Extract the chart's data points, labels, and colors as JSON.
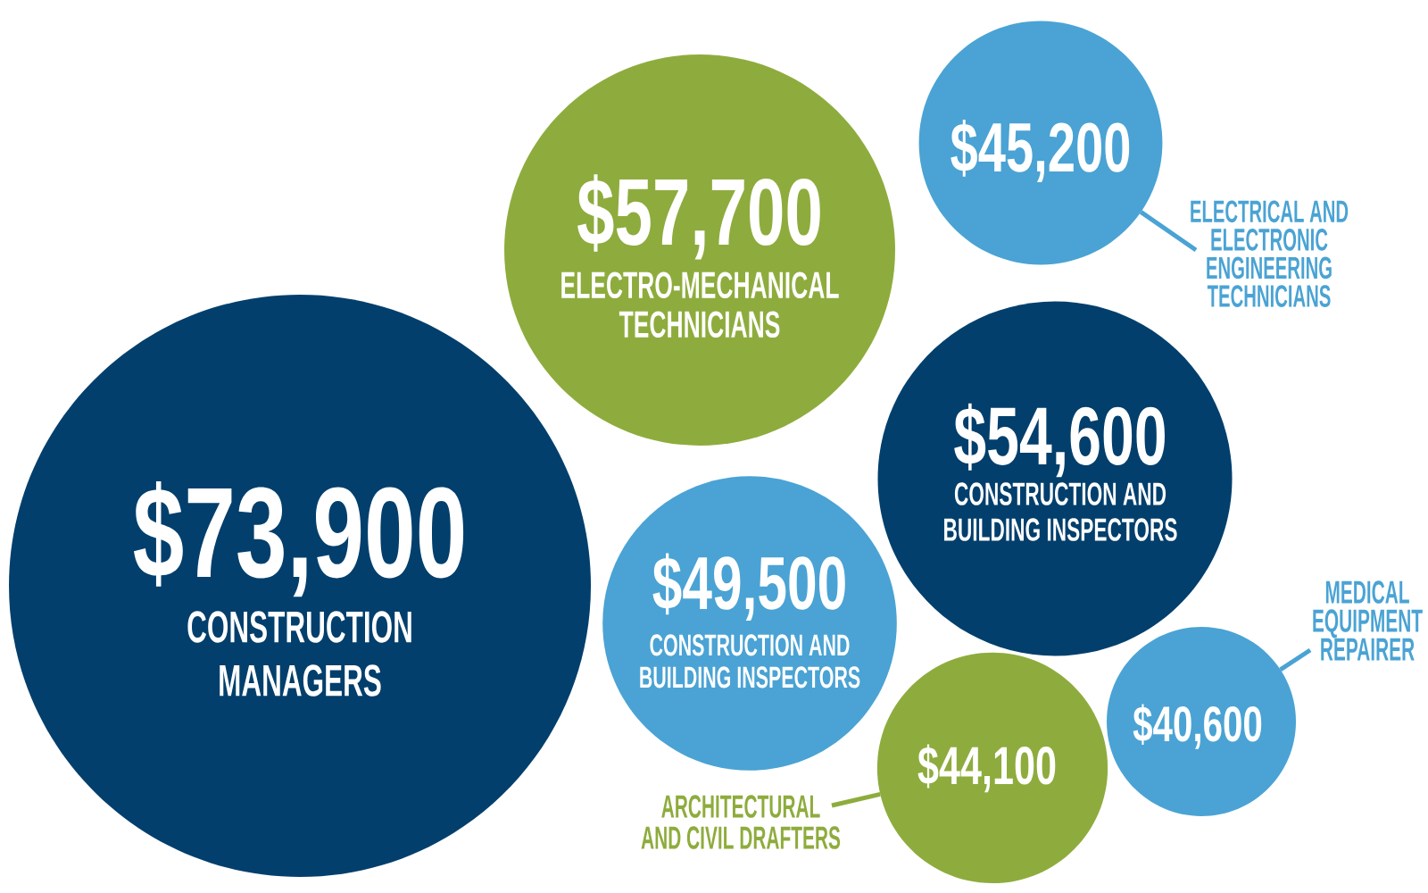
{
  "chart_data": {
    "type": "other",
    "categories": [
      "CONSTRUCTION MANAGERS",
      "ELECTRO-MECHANICAL TECHNICIANS",
      "CONSTRUCTION AND BUILDING INSPECTORS",
      "ARCHITECTURAL AND CIVIL DRAFTERS",
      "ELECTRICAL AND ELECTRONIC ENGINEERING TECHNICIANS",
      "CONSTRUCTION AND BUILDING INSPECTORS",
      "MEDICAL EQUIPMENT REPAIRER"
    ],
    "values": [
      73900,
      57700,
      49500,
      44100,
      45200,
      54600,
      40600
    ],
    "value_labels": [
      "$73,900",
      "$57,700",
      "$49,500",
      "$44,100",
      "$45,200",
      "$54,600",
      "$40,600"
    ],
    "colors": [
      "#023f6c",
      "#8eac3d",
      "#4aa3d4",
      "#8eac3d",
      "#4aa3d4",
      "#023f6c",
      "#4aa3d4"
    ]
  }
}
